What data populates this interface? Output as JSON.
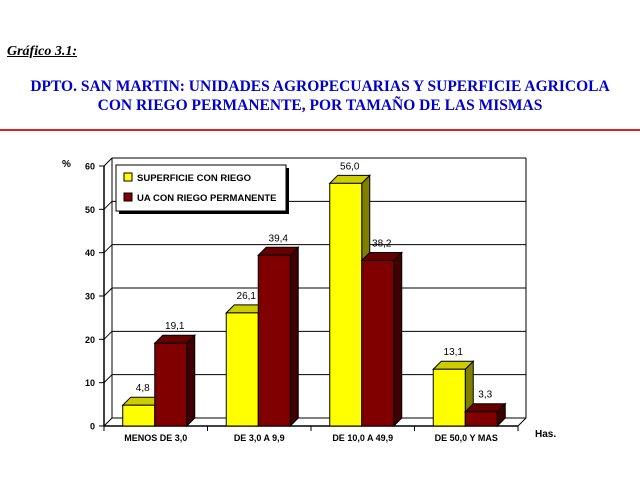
{
  "figure_label": "Gráfico 3.1:",
  "title_line1": "DPTO. SAN MARTIN: UNIDADES AGROPECUARIAS Y SUPERFICIE AGRICOLA",
  "title_line2": "CON RIEGO PERMANENTE, POR TAMAÑO DE LAS MISMAS",
  "colors": {
    "title": "#0000cc",
    "rule": "#dd2222",
    "series1": "#ffff00",
    "series2": "#800000"
  },
  "chart_data": {
    "type": "bar",
    "categories": [
      "MENOS DE 3,0",
      "DE 3,0 A 9,9",
      "DE 10,0 A 49,9",
      "DE 50,0 Y MAS"
    ],
    "series": [
      {
        "name": "SUPERFICIE CON RIEGO",
        "values": [
          4.8,
          26.1,
          56.0,
          13.1
        ],
        "labels": [
          "4,8",
          "26,1",
          "56,0",
          "13,1"
        ]
      },
      {
        "name": "UA CON RIEGO PERMANENTE",
        "values": [
          19.1,
          39.4,
          38.2,
          3.3
        ],
        "labels": [
          "19,1",
          "39,4",
          "38,2",
          "3,3"
        ]
      }
    ],
    "ylabel": "%",
    "xlabel": "Has.",
    "ylim": [
      0,
      60
    ],
    "yticks": [
      0,
      10,
      20,
      30,
      40,
      50,
      60
    ],
    "grid": true,
    "legend_position": "top-left"
  }
}
